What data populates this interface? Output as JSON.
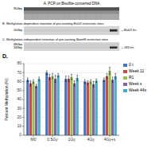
{
  "chart_data": {
    "type": "bar",
    "title": "D.",
    "annotations": [
      "A. PCR on Bisulfite-converted DNA",
      "354bp",
      "B. Methylation-dependent retention of pre-existing BstUI restriction sites",
      "100bp",
      "←BstUI frs",
      "C. Methylation-independent retention of pre-existing BamHI restriction sites",
      "480bp",
      "183bp",
      "←183 frs"
    ],
    "categories": [
      "M0",
      "0.5Gy",
      "1Gy",
      "4Gy",
      "4Gy+s"
    ],
    "ylabel": "Percent Methylation (%)",
    "ylim": [
      0,
      80
    ],
    "yticks": [
      0,
      10,
      20,
      30,
      40,
      50,
      60,
      70,
      80
    ],
    "grid": true,
    "legend": "right",
    "series": [
      {
        "name": "0 t",
        "color": "#4472c4",
        "values": [
          62,
          70,
          63,
          60,
          62
        ],
        "errors": [
          2,
          2,
          3,
          2,
          2
        ]
      },
      {
        "name": "Week 11",
        "color": "#c0504d",
        "values": [
          58,
          65,
          63,
          59,
          66
        ],
        "errors": [
          3,
          3,
          3,
          2,
          3
        ]
      },
      {
        "name": "R1",
        "color": "#9bbb59",
        "values": [
          60,
          66,
          65,
          60,
          72
        ],
        "errors": [
          2,
          3,
          3,
          2,
          4
        ]
      },
      {
        "name": "Week s",
        "color": "#8064a2",
        "values": [
          55,
          63,
          58,
          57,
          62
        ],
        "errors": [
          2,
          4,
          3,
          3,
          3
        ]
      },
      {
        "name": "Week 44s",
        "color": "#4bacc6",
        "values": [
          63,
          67,
          64,
          61,
          66
        ],
        "errors": [
          2,
          2,
          3,
          2,
          3
        ]
      }
    ]
  }
}
